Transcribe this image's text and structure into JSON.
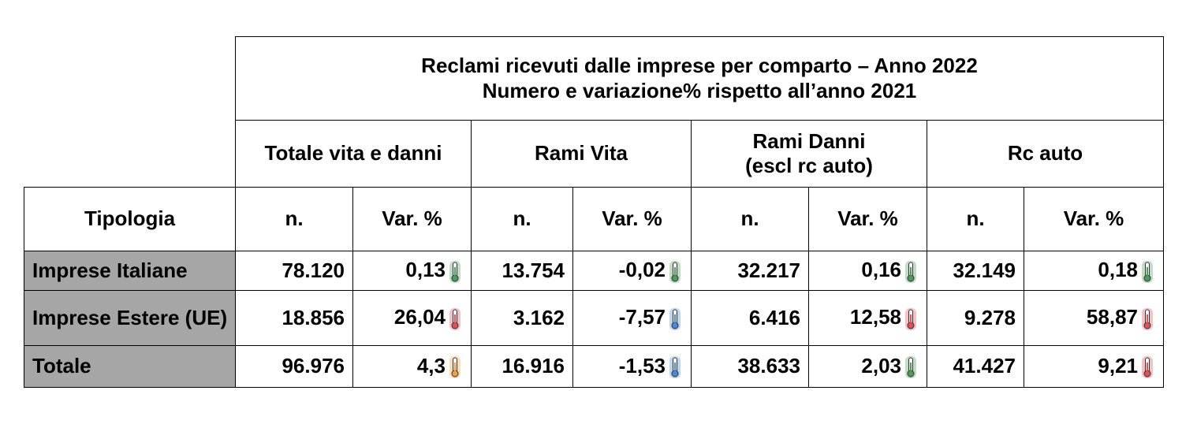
{
  "table": {
    "title": [
      "Reclami ricevuti dalle imprese per comparto – Anno 2022",
      "Numero e variazione% rispetto all’anno 2021"
    ],
    "groups": [
      "Totale vita e danni",
      "Rami Vita",
      "Rami Danni\n(escl rc auto)",
      "Rc auto"
    ],
    "header": {
      "tipologia": "Tipologia",
      "columns": [
        "n.",
        "Var. %",
        "n.",
        "Var. %",
        "n.",
        "Var. %",
        "n.",
        "Var. %"
      ]
    },
    "rows": [
      {
        "label": "Imprese Italiane",
        "cells": [
          "78.120",
          "0,13",
          "13.754",
          "-0,02",
          "32.217",
          "0,16",
          "32.149",
          "0,18"
        ],
        "icon_colors": [
          "#4f9a5a",
          "#4f9a5a",
          "#4f9a5a",
          "#4f9a5a"
        ]
      },
      {
        "label": "Imprese Estere (UE)",
        "cells": [
          "18.856",
          "26,04",
          "3.162",
          "-7,57",
          "6.416",
          "12,58",
          "9.278",
          "58,87"
        ],
        "icon_colors": [
          "#e0505a",
          "#4a88d8",
          "#e0505a",
          "#e0505a"
        ]
      },
      {
        "label": "Totale",
        "cells": [
          "96.976",
          "4,3",
          "16.916",
          "-1,53",
          "38.633",
          "2,03",
          "41.427",
          "9,21"
        ],
        "icon_colors": [
          "#f0a040",
          "#4a88d8",
          "#4f9a5a",
          "#e0505a"
        ]
      }
    ]
  }
}
